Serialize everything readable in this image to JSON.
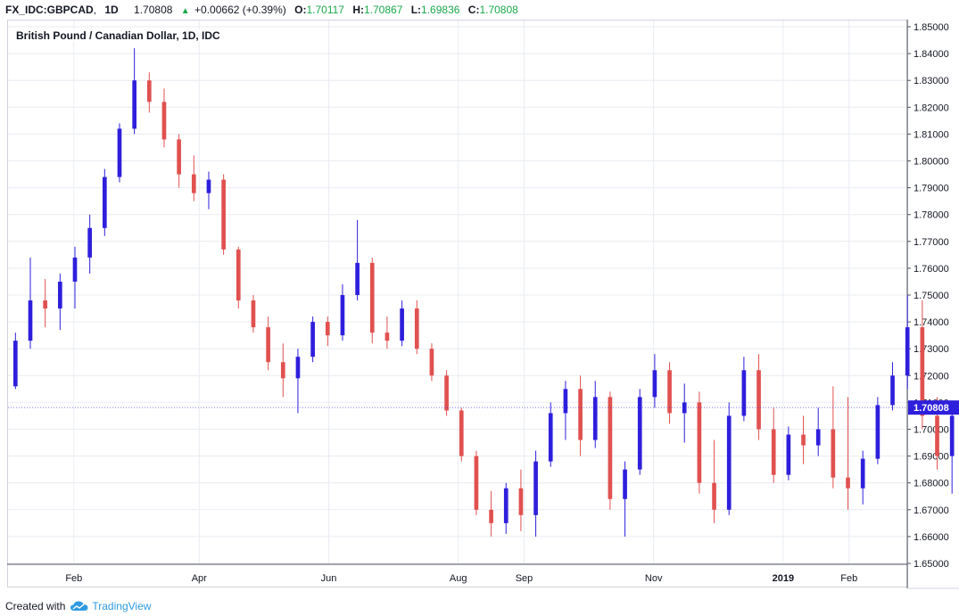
{
  "header": {
    "symbol": "FX_IDC:GBPCAD",
    "interval": "1D",
    "last": "1.70808",
    "change": "+0.00662 (+0.39%)",
    "open_label": "O:",
    "open": "1.70117",
    "high_label": "H:",
    "high": "1.70867",
    "low_label": "L:",
    "low": "1.69836",
    "close_label": "C:",
    "close": "1.70808",
    "colors": {
      "up": "#2e1fdc",
      "down": "#e0514f",
      "gain_text": "#1aa84a"
    }
  },
  "chart_data": {
    "type": "candlestick",
    "title": "British Pound / Canadian Dollar, 1D, IDC",
    "ylim": [
      1.65,
      1.85
    ],
    "y_ticks": [
      "1.65000",
      "1.66000",
      "1.67000",
      "1.68000",
      "1.69000",
      "1.70000",
      "1.71000",
      "1.72000",
      "1.73000",
      "1.74000",
      "1.75000",
      "1.76000",
      "1.77000",
      "1.78000",
      "1.79000",
      "1.80000",
      "1.81000",
      "1.82000",
      "1.83000",
      "1.84000",
      "1.85000"
    ],
    "x_ticks": [
      {
        "label": "Feb",
        "date": "2018-02-01"
      },
      {
        "label": "Apr",
        "date": "2018-04-01"
      },
      {
        "label": "Jun",
        "date": "2018-06-01"
      },
      {
        "label": "Aug",
        "date": "2018-08-01"
      },
      {
        "label": "Sep",
        "date": "2018-09-01"
      },
      {
        "label": "Nov",
        "date": "2018-11-01"
      },
      {
        "label": "2019",
        "date": "2019-01-01",
        "bold": true
      },
      {
        "label": "Feb",
        "date": "2019-02-01"
      }
    ],
    "x_range": [
      "2018-01-01",
      "2019-02-28"
    ],
    "last_price_label": "1.70808",
    "grid": true,
    "series": [
      {
        "interval": "weekly",
        "start": "2018-01-01",
        "ohlc": [
          [
            1.716,
            1.736,
            1.715,
            1.733
          ],
          [
            1.733,
            1.764,
            1.73,
            1.748
          ],
          [
            1.748,
            1.756,
            1.738,
            1.745
          ],
          [
            1.745,
            1.758,
            1.737,
            1.755
          ],
          [
            1.755,
            1.768,
            1.745,
            1.764
          ],
          [
            1.764,
            1.78,
            1.758,
            1.775
          ],
          [
            1.775,
            1.797,
            1.772,
            1.794
          ],
          [
            1.794,
            1.814,
            1.792,
            1.812
          ],
          [
            1.812,
            1.842,
            1.81,
            1.83
          ],
          [
            1.83,
            1.833,
            1.818,
            1.822
          ],
          [
            1.822,
            1.827,
            1.805,
            1.808
          ],
          [
            1.808,
            1.81,
            1.79,
            1.795
          ],
          [
            1.795,
            1.802,
            1.785,
            1.788
          ],
          [
            1.788,
            1.796,
            1.782,
            1.793
          ],
          [
            1.793,
            1.795,
            1.765,
            1.767
          ],
          [
            1.767,
            1.768,
            1.745,
            1.748
          ],
          [
            1.748,
            1.75,
            1.736,
            1.738
          ],
          [
            1.738,
            1.742,
            1.722,
            1.725
          ],
          [
            1.725,
            1.732,
            1.712,
            1.719
          ],
          [
            1.719,
            1.73,
            1.706,
            1.727
          ],
          [
            1.727,
            1.742,
            1.725,
            1.74
          ],
          [
            1.74,
            1.742,
            1.731,
            1.735
          ],
          [
            1.735,
            1.754,
            1.733,
            1.75
          ],
          [
            1.75,
            1.778,
            1.748,
            1.762
          ],
          [
            1.762,
            1.764,
            1.732,
            1.736
          ],
          [
            1.736,
            1.742,
            1.73,
            1.733
          ],
          [
            1.733,
            1.748,
            1.731,
            1.745
          ],
          [
            1.745,
            1.748,
            1.728,
            1.73
          ],
          [
            1.73,
            1.732,
            1.718,
            1.72
          ],
          [
            1.72,
            1.722,
            1.705,
            1.707
          ],
          [
            1.707,
            1.708,
            1.688,
            1.69
          ],
          [
            1.69,
            1.692,
            1.668,
            1.67
          ],
          [
            1.67,
            1.677,
            1.66,
            1.665
          ],
          [
            1.665,
            1.68,
            1.661,
            1.678
          ],
          [
            1.678,
            1.685,
            1.662,
            1.668
          ],
          [
            1.668,
            1.692,
            1.66,
            1.688
          ],
          [
            1.688,
            1.71,
            1.686,
            1.706
          ],
          [
            1.706,
            1.718,
            1.696,
            1.715
          ],
          [
            1.715,
            1.72,
            1.69,
            1.696
          ],
          [
            1.696,
            1.718,
            1.693,
            1.712
          ],
          [
            1.712,
            1.714,
            1.67,
            1.674
          ],
          [
            1.674,
            1.688,
            1.66,
            1.685
          ],
          [
            1.685,
            1.715,
            1.683,
            1.712
          ],
          [
            1.712,
            1.728,
            1.708,
            1.722
          ],
          [
            1.722,
            1.725,
            1.702,
            1.706
          ],
          [
            1.706,
            1.717,
            1.695,
            1.71
          ],
          [
            1.71,
            1.714,
            1.676,
            1.68
          ],
          [
            1.68,
            1.696,
            1.665,
            1.67
          ],
          [
            1.67,
            1.71,
            1.668,
            1.705
          ],
          [
            1.705,
            1.727,
            1.703,
            1.722
          ],
          [
            1.722,
            1.728,
            1.696,
            1.7
          ],
          [
            1.7,
            1.708,
            1.68,
            1.683
          ],
          [
            1.683,
            1.701,
            1.681,
            1.698
          ],
          [
            1.698,
            1.705,
            1.687,
            1.694
          ],
          [
            1.694,
            1.708,
            1.69,
            1.7
          ],
          [
            1.7,
            1.716,
            1.678,
            1.682
          ],
          [
            1.682,
            1.712,
            1.67,
            1.678
          ],
          [
            1.678,
            1.692,
            1.672,
            1.689
          ],
          [
            1.689,
            1.712,
            1.687,
            1.709
          ],
          [
            1.709,
            1.725,
            1.707,
            1.72
          ],
          [
            1.72,
            1.75,
            1.715,
            1.738
          ],
          [
            1.738,
            1.748,
            1.7,
            1.705
          ],
          [
            1.705,
            1.712,
            1.685,
            1.69
          ],
          [
            1.69,
            1.71,
            1.676,
            1.705
          ],
          [
            1.705,
            1.72,
            1.7,
            1.715
          ],
          [
            1.715,
            1.742,
            1.71,
            1.738
          ],
          [
            1.738,
            1.753,
            1.733,
            1.745
          ],
          [
            1.745,
            1.747,
            1.718,
            1.72
          ],
          [
            1.72,
            1.724,
            1.699,
            1.702
          ],
          [
            1.702,
            1.727,
            1.699,
            1.718
          ],
          [
            1.718,
            1.724,
            1.701,
            1.705
          ],
          [
            1.705,
            1.712,
            1.698,
            1.7
          ],
          [
            1.7,
            1.7087,
            1.6984,
            1.7081
          ]
        ]
      }
    ]
  },
  "footer": {
    "created_with": "Created with",
    "brand": "TradingView"
  }
}
